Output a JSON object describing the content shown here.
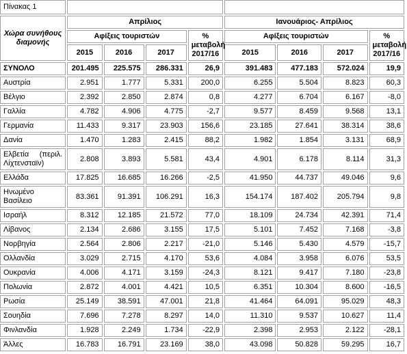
{
  "table": {
    "caption": "Πίνακας 1",
    "country_header": "Χώρα συνήθους διαμονής",
    "groups": [
      "Απρίλιος",
      "Ιανουάριος- Απρίλιος"
    ],
    "arrivals_header": "Αφίξεις τουριστών",
    "change_header": "% μεταβολή 2017/16",
    "years": [
      "2015",
      "2016",
      "2017"
    ],
    "rows": [
      [
        "ΣΥΝΟΛΟ",
        "201.495",
        "225.575",
        "286.331",
        "26,9",
        "391.483",
        "477.183",
        "572.024",
        "19,9"
      ],
      [
        "Αυστρία",
        "2.951",
        "1.777",
        "5.331",
        "200,0",
        "6.255",
        "5.504",
        "8.823",
        "60,3"
      ],
      [
        "Βέλγιο",
        "2.392",
        "2.850",
        "2.874",
        "0,8",
        "4.277",
        "6.704",
        "6.167",
        "-8,0"
      ],
      [
        "Γαλλία",
        "4.782",
        "4.906",
        "4.775",
        "-2,7",
        "9.577",
        "8.459",
        "9.568",
        "13,1"
      ],
      [
        "Γερμανία",
        "11.433",
        "9.317",
        "23.903",
        "156,6",
        "23.185",
        "27.641",
        "38.314",
        "38,6"
      ],
      [
        "Δανία",
        "1.470",
        "1.283",
        "2.415",
        "88,2",
        "1.982",
        "1.854",
        "3.131",
        "68,9"
      ],
      [
        "Ελβετία (περιλ. Λίχτενσταϊν)",
        "2.808",
        "3.893",
        "5.581",
        "43,4",
        "4.901",
        "6.178",
        "8.114",
        "31,3"
      ],
      [
        "Ελλάδα",
        "17.825",
        "16.685",
        "16.266",
        "-2,5",
        "41.950",
        "44.737",
        "49.046",
        "9,6"
      ],
      [
        "Ηνωμένο Βασίλειο",
        "83.361",
        "91.391",
        "106.291",
        "16,3",
        "154.174",
        "187.402",
        "205.794",
        "9,8"
      ],
      [
        "Ισραήλ",
        "8.312",
        "12.185",
        "21.572",
        "77,0",
        "18.109",
        "24.734",
        "42.391",
        "71,4"
      ],
      [
        "Λίβανος",
        "2.134",
        "2.686",
        "3.155",
        "17,5",
        "5.101",
        "7.452",
        "7.168",
        "-3,8"
      ],
      [
        "Νορβηγία",
        "2.564",
        "2.806",
        "2.217",
        "-21,0",
        "5.146",
        "5.430",
        "4.579",
        "-15,7"
      ],
      [
        "Ολλανδία",
        "3.029",
        "2.715",
        "4.170",
        "53,6",
        "4.084",
        "3.958",
        "6.076",
        "53,5"
      ],
      [
        "Ουκρανία",
        "4.006",
        "4.171",
        "3.159",
        "-24,3",
        "8.121",
        "9.417",
        "7.180",
        "-23,8"
      ],
      [
        "Πολωνία",
        "2.872",
        "4.001",
        "4.421",
        "10,5",
        "6.351",
        "10.304",
        "8.600",
        "-16,5"
      ],
      [
        "Ρωσία",
        "25.149",
        "38.591",
        "47.001",
        "21,8",
        "41.464",
        "64.091",
        "95.029",
        "48,3"
      ],
      [
        "Σουηδία",
        "7.696",
        "7.278",
        "8.297",
        "14,0",
        "11.310",
        "9.537",
        "10.627",
        "11,4"
      ],
      [
        "Φινλανδία",
        "1.928",
        "2.249",
        "1.734",
        "-22,9",
        "2.398",
        "2.953",
        "2.122",
        "-28,1"
      ],
      [
        "Άλλες",
        "16.783",
        "16.791",
        "23.169",
        "38,0",
        "43.098",
        "50.828",
        "59.295",
        "16,7"
      ]
    ]
  }
}
